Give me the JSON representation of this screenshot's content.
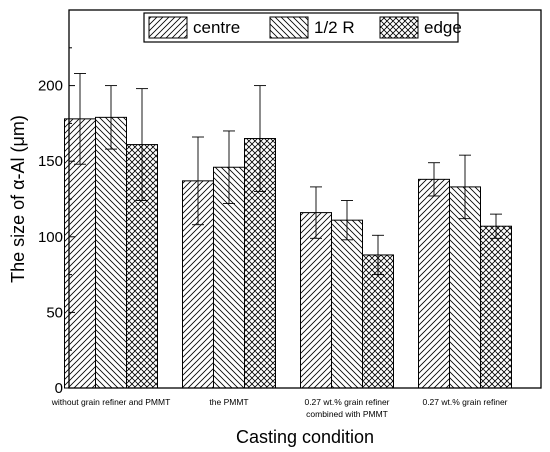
{
  "chart_data": {
    "type": "bar",
    "title": "",
    "xlabel": "Casting condition",
    "ylabel": "The size of α-Al (μm)",
    "ylim": [
      0,
      250
    ],
    "yticks": [
      0,
      50,
      100,
      150,
      200
    ],
    "grid": false,
    "legend_position": "top",
    "categories": [
      [
        "without grain refiner and PMMT"
      ],
      [
        "the PMMT"
      ],
      [
        "0.27 wt.% grain refiner",
        "combined with PMMT"
      ],
      [
        "0.27 wt.% grain refiner"
      ]
    ],
    "series": [
      {
        "name": "centre",
        "pattern": "diagonal-right",
        "values": [
          178,
          137,
          116,
          138
        ],
        "errors": [
          30,
          29,
          17,
          11
        ]
      },
      {
        "name": "1/2 R",
        "pattern": "diagonal-left",
        "values": [
          179,
          146,
          111,
          133
        ],
        "errors": [
          21,
          24,
          13,
          21
        ]
      },
      {
        "name": "edge",
        "pattern": "crosshatch",
        "values": [
          161,
          165,
          88,
          107
        ],
        "errors": [
          37,
          35,
          13,
          8
        ]
      }
    ],
    "colors": {
      "bar_fill": "#ffffff",
      "bar_stroke": "#000000",
      "hatch": "#000000"
    }
  }
}
